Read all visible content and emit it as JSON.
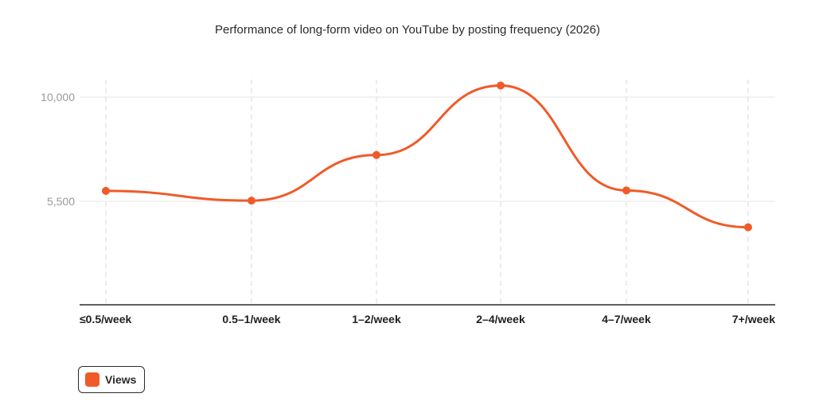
{
  "chart_data": {
    "type": "line",
    "title": "Performance of long-form video on YouTube by posting frequency (2026)",
    "xlabel": "",
    "ylabel": "",
    "categories": [
      "≤0.5/week",
      "0.5–1/week",
      "1–2/week",
      "2–4/week",
      "4–7/week",
      "7+/week"
    ],
    "series": [
      {
        "name": "Views",
        "values": [
          5950,
          5530,
          7500,
          10500,
          5970,
          4380
        ],
        "color": "#f05a28"
      }
    ],
    "yticks": [
      5500,
      10000
    ],
    "ytick_labels": [
      "5,500",
      "10,000"
    ],
    "ylim": [
      1500,
      12000
    ],
    "grid": true,
    "curve": "smooth",
    "markers": true,
    "legend_position": "bottom-left"
  },
  "colors": {
    "accent": "#f05a28",
    "grid": "#e5e5e5",
    "axis": "#2b2b2b",
    "tick_label": "#9a9a9a"
  }
}
